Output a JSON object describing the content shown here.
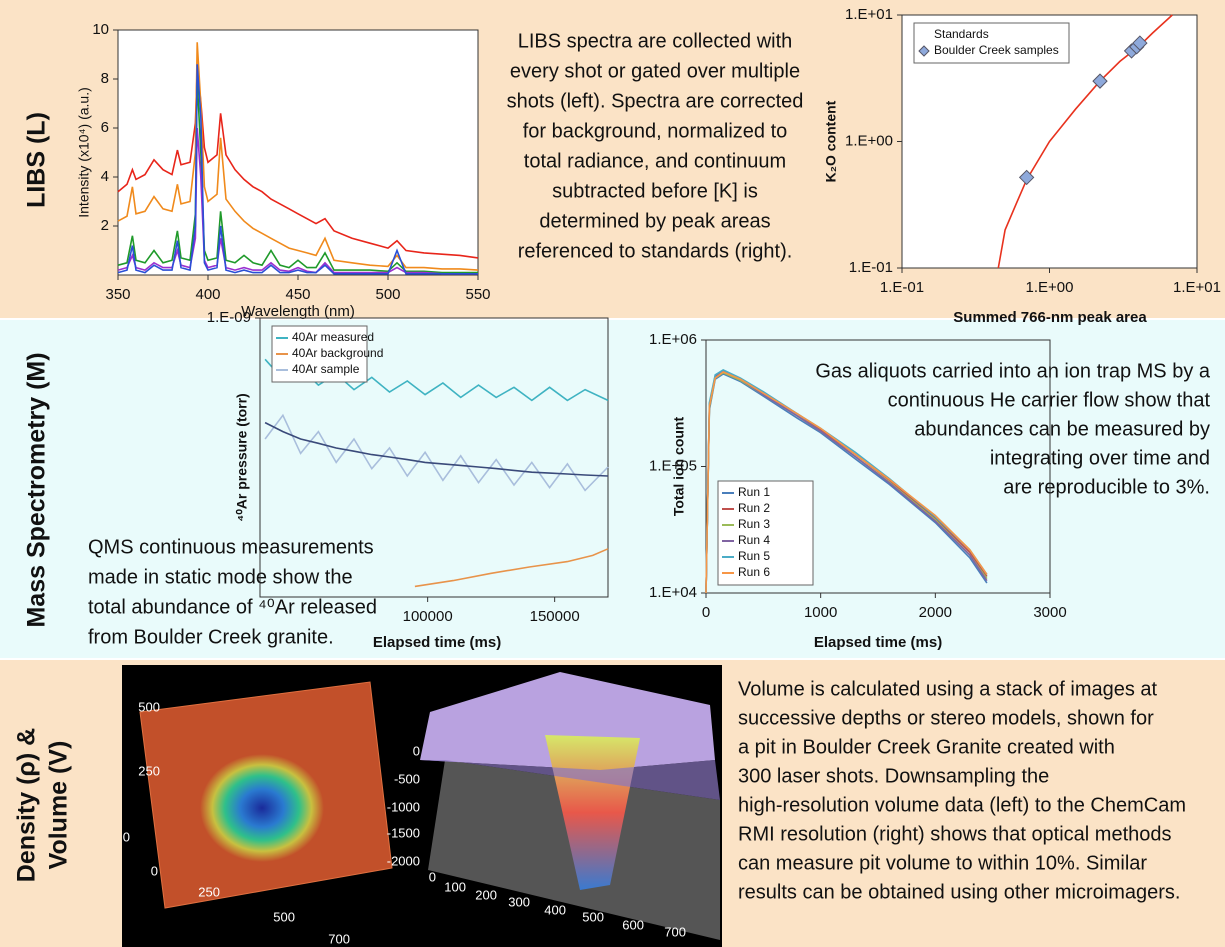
{
  "chart_data": [
    {
      "type": "line",
      "xlabel": "Wavelength (nm)",
      "ylabel": "Intensity (x10⁴) (a.u.)",
      "x": [
        350,
        355,
        358,
        360,
        365,
        370,
        375,
        380,
        383,
        385,
        390,
        393,
        394,
        396,
        398,
        400,
        405,
        407,
        410,
        415,
        420,
        425,
        430,
        435,
        440,
        445,
        450,
        455,
        460,
        465,
        470,
        480,
        490,
        500,
        505,
        510,
        520,
        530,
        540,
        550
      ],
      "series": [
        {
          "color": "#e8251a",
          "values": [
            3.4,
            3.7,
            4.3,
            3.9,
            4.1,
            4.7,
            4.3,
            4.1,
            5.1,
            4.5,
            4.6,
            6.2,
            8.4,
            7.1,
            5.2,
            4.6,
            4.9,
            6.6,
            4.9,
            4.3,
            3.9,
            3.6,
            3.4,
            3.1,
            2.9,
            2.7,
            2.5,
            2.3,
            2.1,
            2.3,
            1.8,
            1.5,
            1.3,
            1.1,
            1.4,
            1.0,
            0.9,
            0.85,
            0.8,
            0.7
          ]
        },
        {
          "color": "#f08a1c",
          "values": [
            2.2,
            2.4,
            3.6,
            2.5,
            2.6,
            3.2,
            2.7,
            2.6,
            3.7,
            2.9,
            3.0,
            5.0,
            9.5,
            7.0,
            3.6,
            3.0,
            3.3,
            5.6,
            3.1,
            2.6,
            2.2,
            1.9,
            1.7,
            1.5,
            1.3,
            1.1,
            1.0,
            0.9,
            0.8,
            1.5,
            0.6,
            0.5,
            0.4,
            0.35,
            0.8,
            0.3,
            0.3,
            0.25,
            0.25,
            0.2
          ]
        },
        {
          "color": "#1f9a2a",
          "values": [
            0.4,
            0.5,
            1.6,
            0.6,
            0.5,
            1.0,
            0.5,
            0.6,
            1.8,
            0.7,
            0.6,
            2.5,
            8.0,
            5.0,
            1.0,
            0.6,
            0.7,
            2.6,
            0.6,
            0.5,
            0.8,
            0.5,
            0.4,
            1.0,
            0.4,
            0.3,
            0.6,
            0.3,
            0.3,
            0.9,
            0.2,
            0.2,
            0.2,
            0.15,
            0.5,
            0.15,
            0.15,
            0.1,
            0.1,
            0.1
          ]
        },
        {
          "color": "#9b30d0",
          "values": [
            0.2,
            0.3,
            0.8,
            0.3,
            0.2,
            0.5,
            0.3,
            0.3,
            1.0,
            0.4,
            0.3,
            1.5,
            6.0,
            4.0,
            0.6,
            0.3,
            0.4,
            1.5,
            0.3,
            0.2,
            0.3,
            0.2,
            0.2,
            0.5,
            0.2,
            0.15,
            0.3,
            0.15,
            0.1,
            0.5,
            0.1,
            0.1,
            0.1,
            0.1,
            0.3,
            0.1,
            0.1,
            0.05,
            0.05,
            0.05
          ]
        },
        {
          "color": "#2a4fd6",
          "values": [
            0.1,
            0.2,
            1.2,
            0.2,
            0.1,
            0.4,
            0.2,
            0.2,
            1.4,
            0.3,
            0.2,
            2.0,
            8.6,
            6.5,
            0.5,
            0.2,
            0.3,
            2.0,
            0.2,
            0.1,
            0.2,
            0.1,
            0.1,
            0.4,
            0.1,
            0.1,
            0.2,
            0.1,
            0.1,
            0.4,
            0.05,
            0.05,
            0.05,
            0.05,
            1.0,
            0.05,
            0.05,
            0.05,
            0.05,
            0.05
          ]
        }
      ],
      "xlim": [
        350,
        550
      ],
      "xticks": [
        350,
        400,
        450,
        500,
        550
      ],
      "ylim": [
        0,
        10
      ],
      "yticks": [
        2,
        4,
        6,
        8,
        10
      ]
    },
    {
      "type": "scatter",
      "xlabel": "Summed 766-nm peak area",
      "ylabel": "K₂O content",
      "xscale": "log",
      "yscale": "log",
      "legend": "upper left",
      "series": [
        {
          "name": "Standards",
          "type": "line",
          "color": "#e8321e",
          "x": [
            0.45,
            0.5,
            0.6,
            0.7,
            1,
            1.5,
            2.2,
            3,
            4,
            5,
            6.8
          ],
          "values": [
            0.1,
            0.2,
            0.33,
            0.5,
            1.0,
            1.8,
            3.0,
            4.3,
            5.6,
            7.2,
            10
          ]
        },
        {
          "name": "Boulder Creek samples",
          "type": "scatter",
          "color": "#8ea9db",
          "x": [
            0.7,
            2.2,
            3.6,
            3.9,
            4.1
          ],
          "values": [
            0.52,
            3.0,
            5.2,
            5.6,
            6.0
          ]
        }
      ],
      "xlim": [
        0.1,
        10
      ],
      "xticks": [
        {
          "value": 0.1,
          "label": "1.E-01"
        },
        {
          "value": 1,
          "label": "1.E+00"
        },
        {
          "value": 10,
          "label": "1.E+01"
        }
      ],
      "ylim": [
        0.1,
        10
      ],
      "yticks": [
        {
          "value": 0.1,
          "label": "1.E-01"
        },
        {
          "value": 1,
          "label": "1.E+00"
        },
        {
          "value": 10,
          "label": "1.E+01"
        }
      ]
    },
    {
      "type": "line",
      "xlabel": "Elapsed time (ms)",
      "ylabel": "⁴⁰Ar pressure (torr)",
      "yscale": "log",
      "legend": "upper left",
      "x": [
        36000,
        43000,
        50000,
        57000,
        64000,
        71000,
        78000,
        85000,
        92000,
        99000,
        106000,
        113000,
        120000,
        127000,
        134000,
        141000,
        148000,
        155000,
        162000,
        171000
      ],
      "series": [
        {
          "name": "40Ar measured",
          "color": "#3fb3c2",
          "values": [
            3.6e-10,
            2.2e-10,
            2.9e-10,
            1.9e-10,
            2.5e-10,
            1.7e-10,
            2.3e-10,
            1.6e-10,
            2.1e-10,
            1.5e-10,
            2e-10,
            1.4e-10,
            1.9e-10,
            1.4e-10,
            1.8e-10,
            1.3e-10,
            1.8e-10,
            1.3e-10,
            1.7e-10,
            1.3e-10
          ]
        },
        {
          "name": "40Ar background",
          "color": "#e8934a",
          "x": [
            95000,
            110000,
            125000,
            140000,
            155000,
            165000,
            171000
          ],
          "values": [
            1.3e-12,
            1.5e-12,
            1.8e-12,
            2.1e-12,
            2.4e-12,
            2.8e-12,
            3.3e-12
          ]
        },
        {
          "name": "40Ar sample",
          "color": "#a9bedc",
          "values": [
            5e-11,
            9e-11,
            3.5e-11,
            6e-11,
            2.8e-11,
            5e-11,
            2.4e-11,
            4e-11,
            2e-11,
            3.6e-11,
            1.8e-11,
            3.3e-11,
            1.7e-11,
            3e-11,
            1.6e-11,
            2.8e-11,
            1.5e-11,
            2.7e-11,
            1.4e-11,
            2.5e-11
          ]
        },
        {
          "color": "#3a4a7a",
          "values": [
            7.5e-11,
            6e-11,
            5e-11,
            4.5e-11,
            4e-11,
            3.7e-11,
            3.4e-11,
            3.2e-11,
            3e-11,
            2.8e-11,
            2.7e-11,
            2.6e-11,
            2.5e-11,
            2.4e-11,
            2.3e-11,
            2.2e-11,
            2.15e-11,
            2.1e-11,
            2.05e-11,
            2e-11
          ]
        }
      ],
      "xlim": [
        34000,
        171000
      ],
      "xticks": [
        100000,
        150000
      ],
      "ylim": [
        1e-12,
        1e-09
      ],
      "yticks": [
        {
          "value": 1e-09,
          "label": "1.E-09"
        }
      ]
    },
    {
      "type": "line",
      "xlabel": "Elapsed time (ms)",
      "ylabel": "Total ion count",
      "yscale": "log",
      "legend": "lower left",
      "x": [
        0,
        30,
        80,
        150,
        300,
        500,
        800,
        1000,
        1300,
        1600,
        2000,
        2300,
        2450
      ],
      "series": [
        {
          "name": "Run 1",
          "color": "#4a7ebb",
          "values": [
            10000.0,
            280000.0,
            490000.0,
            540000.0,
            470000.0,
            360000.0,
            240000.0,
            185000.0,
            115000.0,
            72000.0,
            36000.0,
            19000.0,
            12000.0
          ]
        },
        {
          "name": "Run 2",
          "color": "#c0504d",
          "values": [
            10000.0,
            310000.0,
            520000.0,
            560000.0,
            490000.0,
            380000.0,
            260000.0,
            195000.0,
            125000.0,
            78000.0,
            39000.0,
            21000.0,
            13500.0
          ]
        },
        {
          "name": "Run 3",
          "color": "#9bbb59",
          "values": [
            10000.0,
            290000.0,
            500000.0,
            550000.0,
            480000.0,
            370000.0,
            250000.0,
            190000.0,
            120000.0,
            75000.0,
            38000.0,
            20000.0,
            13000.0
          ]
        },
        {
          "name": "Run 4",
          "color": "#8064a2",
          "values": [
            10000.0,
            300000.0,
            510000.0,
            570000.0,
            490000.0,
            370000.0,
            250000.0,
            190000.0,
            120000.0,
            74000.0,
            37000.0,
            20000.0,
            12500.0
          ]
        },
        {
          "name": "Run 5",
          "color": "#4bacc6",
          "values": [
            10000.0,
            320000.0,
            530000.0,
            580000.0,
            500000.0,
            390000.0,
            260000.0,
            200000.0,
            130000.0,
            80000.0,
            40000.0,
            22000.0,
            14000.0
          ]
        },
        {
          "name": "Run 6",
          "color": "#f79646",
          "values": [
            10000.0,
            300000.0,
            500000.0,
            560000.0,
            490000.0,
            380000.0,
            260000.0,
            200000.0,
            125000.0,
            79000.0,
            41000.0,
            22000.0,
            14000.0
          ]
        }
      ],
      "xlim": [
        0,
        3000
      ],
      "xticks": [
        0,
        1000,
        2000,
        3000
      ],
      "ylim": [
        10000,
        1000000
      ],
      "yticks": [
        {
          "value": 10000,
          "label": "1.E+04"
        },
        {
          "value": 100000,
          "label": "1.E+05"
        },
        {
          "value": 1000000,
          "label": "1.E+06"
        }
      ]
    }
  ],
  "sections": {
    "libs": {
      "label": [
        "LIBS (L)"
      ],
      "text": [
        "LIBS spectra are collected with",
        "every shot or gated over multiple",
        "shots (left). Spectra are corrected",
        "for background, normalized to",
        "total radiance, and continuum",
        "subtracted before [K] is",
        "determined by peak areas",
        "referenced to standards (right)."
      ]
    },
    "ms": {
      "label": [
        "Mass Spectrometry (M)"
      ],
      "text_right": [
        "Gas aliquots carried into an ion trap MS by a",
        "continuous He carrier flow show that",
        "abundances can be measured by",
        "integrating over time and",
        "are reproducible to 3%."
      ],
      "text_left": [
        "QMS continuous measurements",
        "made in static mode show the",
        "total abundance of ⁴⁰Ar released",
        "from Boulder Creek granite."
      ]
    },
    "volume": {
      "label": [
        "Density (ρ) &",
        "Volume (V)"
      ],
      "text": [
        "Volume is calculated using a stack of images at",
        "successive depths or stereo models, shown for",
        "a pit in Boulder Creek Granite created with",
        "300 laser shots. Downsampling the",
        "high-resolution volume data (left) to the ChemCam",
        "RMI resolution (right) shows that optical methods",
        "can measure pit volume to within 10%. Similar",
        "results can be obtained using other microimagers."
      ]
    }
  },
  "images": {
    "left": {
      "y_ticks": [
        500,
        250,
        0
      ],
      "x_ticks": [
        0,
        250,
        500,
        700
      ]
    },
    "right": {
      "z_ticks": [
        0,
        -500,
        -1000,
        -1500,
        -2000
      ],
      "x_ticks": [
        0,
        100,
        200,
        300,
        400,
        500,
        600,
        700
      ]
    }
  }
}
